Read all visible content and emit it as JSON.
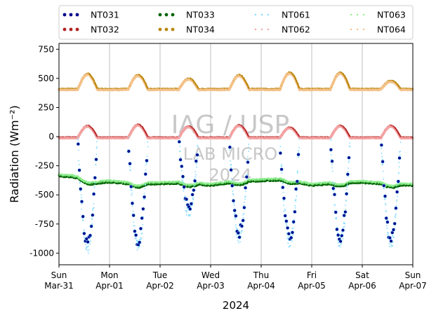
{
  "chart_data": {
    "type": "scatter",
    "title": "",
    "xlabel": "2024",
    "ylabel": "Radiation (Wm⁻²)",
    "xlim": [
      "2024-03-31",
      "2024-04-07"
    ],
    "ylim": [
      -1100,
      800
    ],
    "yticks": [
      -1000,
      -750,
      -500,
      -250,
      0,
      250,
      500,
      750
    ],
    "xticks": [
      {
        "date": "2024-03-31",
        "day": "Sun",
        "label": "Mar-31"
      },
      {
        "date": "2024-04-01",
        "day": "Mon",
        "label": "Apr-01"
      },
      {
        "date": "2024-04-02",
        "day": "Tue",
        "label": "Apr-02"
      },
      {
        "date": "2024-04-03",
        "day": "Wed",
        "label": "Apr-03"
      },
      {
        "date": "2024-04-04",
        "day": "Thu",
        "label": "Apr-04"
      },
      {
        "date": "2024-04-05",
        "day": "Fri",
        "label": "Apr-05"
      },
      {
        "date": "2024-04-06",
        "day": "Sat",
        "label": "Apr-06"
      },
      {
        "date": "2024-04-07",
        "day": "Sun",
        "label": "Apr-07"
      }
    ],
    "grid": "vertical",
    "legend_position": "top (above plot), 4 columns",
    "watermark": [
      "IAG / USP",
      "LAB MICRO",
      "2024"
    ],
    "series": [
      {
        "name": "NT031",
        "color": "#00008b",
        "marker": "dot-large",
        "daily_min": [
          -910,
          -900,
          -600,
          -820,
          -860,
          -870,
          -870
        ]
      },
      {
        "name": "NT032",
        "color": "#b22222",
        "marker": "dot",
        "daily_peak": [
          100,
          110,
          95,
          105,
          85,
          100,
          100
        ]
      },
      {
        "name": "NT033",
        "color": "#006400",
        "marker": "dot",
        "values_x": [
          "2024-03-31 00:00",
          "2024-03-31 06:00",
          "2024-03-31 18:00",
          "2024-04-01 00:00",
          "2024-04-01 12:00",
          "2024-04-02 00:00",
          "2024-04-02 12:00",
          "2024-04-03 00:00",
          "2024-04-03 12:00",
          "2024-04-04 00:00",
          "2024-04-04 12:00",
          "2024-04-05 00:00",
          "2024-04-05 12:00",
          "2024-04-06 00:00",
          "2024-04-06 12:00",
          "2024-04-07 00:00"
        ],
        "values_y": [
          -340,
          -345,
          -400,
          -390,
          -410,
          -405,
          -400,
          -420,
          -390,
          -380,
          -370,
          -420,
          -400,
          -395,
          -410,
          -420
        ]
      },
      {
        "name": "NT034",
        "color": "#b8860b",
        "marker": "dot",
        "daily_peak": [
          540,
          530,
          500,
          530,
          550,
          550,
          480
        ]
      },
      {
        "name": "NT061",
        "color": "#7fdbff",
        "marker": "small-dot"
      },
      {
        "name": "NT062",
        "color": "#f4a3a3",
        "marker": "small-dot"
      },
      {
        "name": "NT063",
        "color": "#90ee90",
        "marker": "small-dot"
      },
      {
        "name": "NT064",
        "color": "#f4c28a",
        "marker": "small-dot"
      }
    ]
  }
}
